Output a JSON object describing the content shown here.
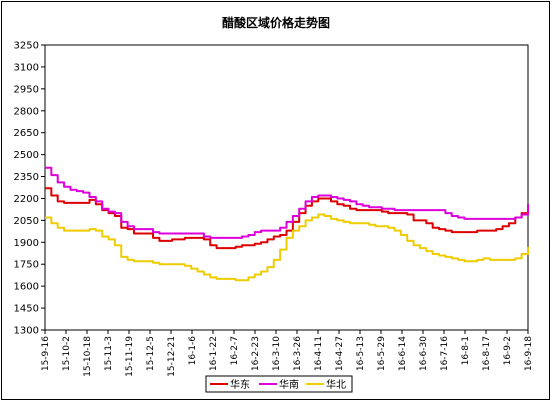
{
  "chart_data": {
    "type": "line",
    "title": "醋酸区域价格走势图",
    "xlabel": "",
    "ylabel": "",
    "ylim": [
      1300,
      3250
    ],
    "yticks": [
      1300,
      1450,
      1600,
      1750,
      1900,
      2050,
      2200,
      2350,
      2500,
      2650,
      2800,
      2950,
      3100,
      3250
    ],
    "grid": false,
    "legend_position": "bottom",
    "x_tick_labels": [
      "15-9-16",
      "15-10-2",
      "15-10-18",
      "15-11-3",
      "15-11-19",
      "15-12-5",
      "15-12-21",
      "16-1-6",
      "16-1-22",
      "16-2-7",
      "16-2-23",
      "16-3-10",
      "16-3-26",
      "16-4-11",
      "16-4-27",
      "16-5-13",
      "16-5-29",
      "16-6-14",
      "16-6-30",
      "16-7-16",
      "16-8-1",
      "16-8-17",
      "16-9-2",
      "16-9-18"
    ],
    "series": [
      {
        "name": "华东",
        "color": "#dd0000",
        "values": [
          2270,
          2220,
          2180,
          2170,
          2170,
          2170,
          2170,
          2190,
          2160,
          2120,
          2100,
          2080,
          2000,
          1990,
          1960,
          1960,
          1960,
          1930,
          1910,
          1910,
          1920,
          1920,
          1930,
          1930,
          1930,
          1920,
          1880,
          1860,
          1860,
          1860,
          1870,
          1880,
          1880,
          1890,
          1900,
          1920,
          1940,
          1950,
          1980,
          2040,
          2100,
          2150,
          2180,
          2200,
          2200,
          2180,
          2160,
          2150,
          2130,
          2120,
          2120,
          2120,
          2120,
          2110,
          2100,
          2100,
          2100,
          2090,
          2050,
          2050,
          2030,
          2000,
          1990,
          1980,
          1970,
          1970,
          1970,
          1970,
          1980,
          1980,
          1980,
          1990,
          2010,
          2030,
          2070,
          2100,
          2110
        ]
      },
      {
        "name": "华南",
        "color": "#dd00dd",
        "values": [
          2410,
          2360,
          2310,
          2280,
          2260,
          2250,
          2240,
          2210,
          2180,
          2130,
          2110,
          2100,
          2040,
          2010,
          1990,
          1990,
          1990,
          1970,
          1960,
          1960,
          1960,
          1960,
          1960,
          1960,
          1960,
          1940,
          1930,
          1930,
          1930,
          1930,
          1930,
          1940,
          1950,
          1970,
          1980,
          1980,
          1980,
          2000,
          2040,
          2080,
          2130,
          2180,
          2210,
          2220,
          2220,
          2210,
          2200,
          2190,
          2180,
          2160,
          2150,
          2140,
          2140,
          2130,
          2130,
          2120,
          2120,
          2120,
          2120,
          2120,
          2120,
          2120,
          2120,
          2100,
          2080,
          2070,
          2060,
          2060,
          2060,
          2060,
          2060,
          2060,
          2060,
          2060,
          2070,
          2090,
          2160
        ]
      },
      {
        "name": "华北",
        "color": "#eecc00",
        "values": [
          2070,
          2030,
          2000,
          1980,
          1980,
          1980,
          1980,
          1990,
          1980,
          1940,
          1920,
          1880,
          1800,
          1780,
          1770,
          1770,
          1770,
          1760,
          1750,
          1750,
          1750,
          1750,
          1740,
          1720,
          1700,
          1680,
          1660,
          1650,
          1650,
          1650,
          1640,
          1640,
          1660,
          1680,
          1700,
          1730,
          1780,
          1850,
          1930,
          1980,
          2010,
          2050,
          2070,
          2090,
          2080,
          2060,
          2050,
          2040,
          2030,
          2030,
          2030,
          2020,
          2010,
          2010,
          2000,
          1980,
          1950,
          1910,
          1880,
          1860,
          1840,
          1820,
          1810,
          1800,
          1790,
          1780,
          1770,
          1770,
          1780,
          1790,
          1780,
          1780,
          1780,
          1780,
          1790,
          1820,
          1870
        ]
      }
    ]
  }
}
